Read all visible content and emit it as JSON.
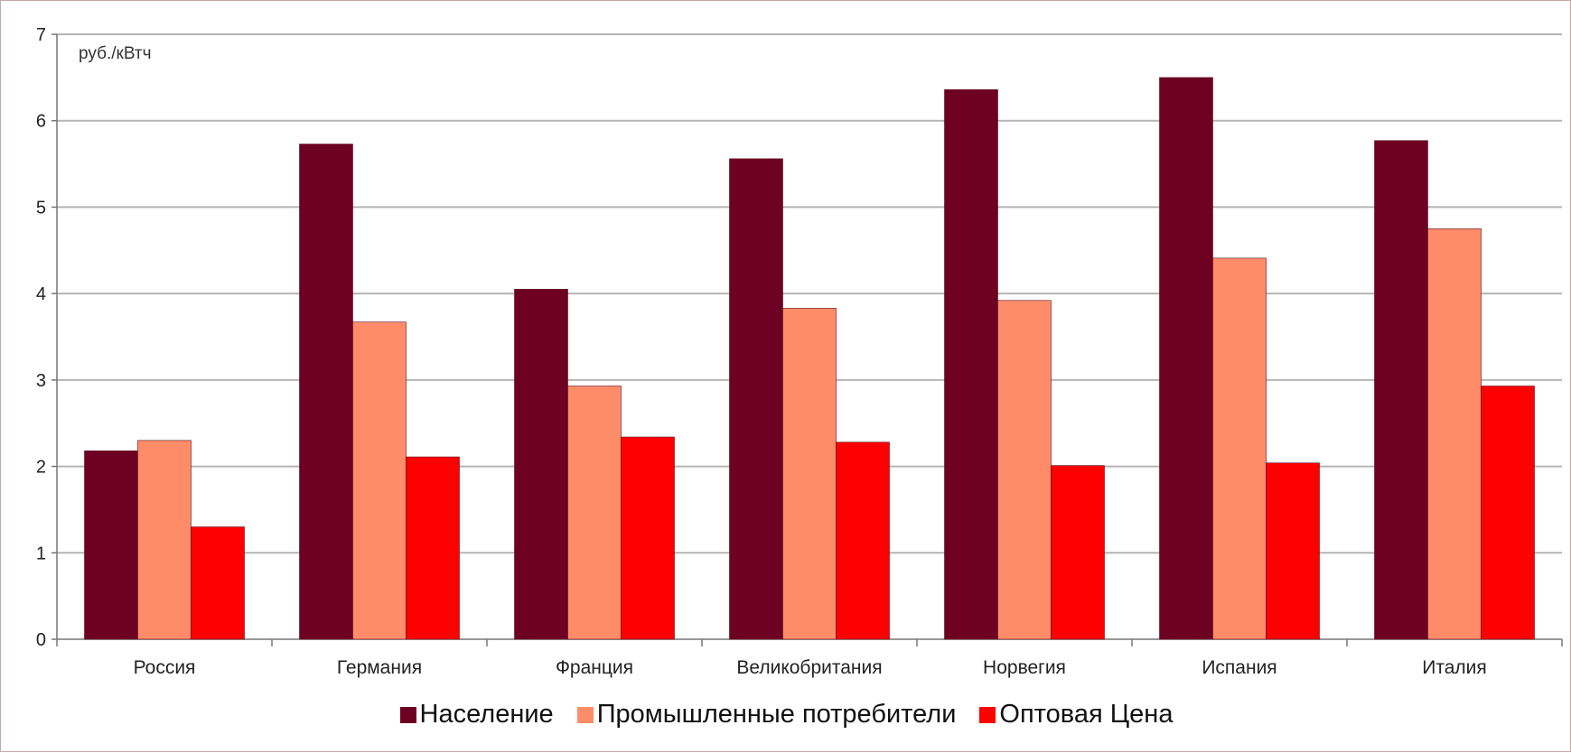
{
  "chart_data": {
    "type": "bar",
    "unit_label": "руб./кВтч",
    "categories": [
      "Россия",
      "Германия",
      "Франция",
      "Великобритания",
      "Норвегия",
      "Испания",
      "Италия"
    ],
    "series": [
      {
        "name": "Население",
        "color": "#6e0024",
        "values": [
          2.18,
          5.73,
          4.05,
          5.56,
          6.36,
          6.5,
          5.77
        ]
      },
      {
        "name": "Промышленные потребители",
        "color": "#ff8c69",
        "values": [
          2.3,
          3.67,
          2.93,
          3.83,
          3.92,
          4.41,
          4.75
        ]
      },
      {
        "name": "Оптовая Цена",
        "color": "#ff0000",
        "values": [
          1.3,
          2.11,
          2.34,
          2.28,
          2.01,
          2.04,
          2.93
        ]
      }
    ],
    "yticks": [
      "0",
      "1",
      "2",
      "3",
      "4",
      "5",
      "6",
      "7"
    ],
    "ylim": [
      0,
      7
    ],
    "grid": true,
    "legend_position": "bottom"
  }
}
